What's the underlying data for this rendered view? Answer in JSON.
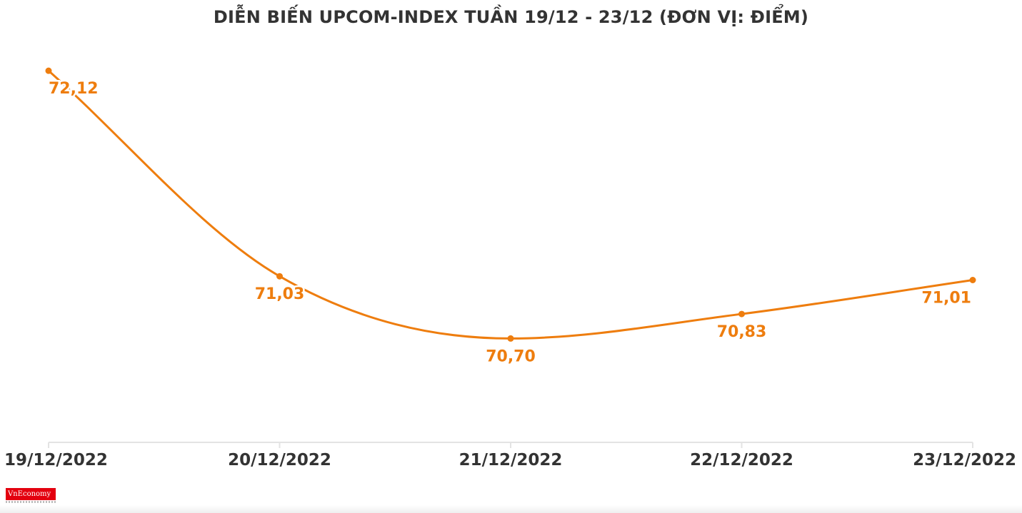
{
  "title": "DIỄN BIẾN UPCOM-INDEX TUẦN 19/12 - 23/12 (ĐƠN VỊ: ĐIỂM)",
  "logo": {
    "text": "VnEconomy"
  },
  "colors": {
    "line": "#ee7d0e",
    "axis": "#e3e3e3",
    "tick_text": "#333333",
    "title": "#333333"
  },
  "chart_data": {
    "type": "line",
    "title": "DIỄN BIẾN UPCOM-INDEX TUẦN 19/12 - 23/12 (ĐƠN VỊ: ĐIỂM)",
    "categories": [
      "19/12/2022",
      "20/12/2022",
      "21/12/2022",
      "22/12/2022",
      "23/12/2022"
    ],
    "series": [
      {
        "values": [
          72.12,
          71.03,
          70.7,
          70.83,
          71.01
        ],
        "labels": [
          "72,12",
          "71,03",
          "70,70",
          "70,83",
          "71,01"
        ]
      }
    ],
    "xlabel": "",
    "ylabel": "",
    "ylim": [
      70.1,
      72.2
    ],
    "grid": false,
    "legend": "none",
    "smooth": true
  }
}
